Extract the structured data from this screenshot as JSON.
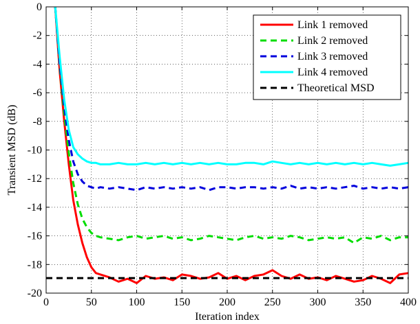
{
  "chart_data": {
    "type": "line",
    "title": "",
    "xlabel": "Iteration index",
    "ylabel": "Transient MSD  (dB)",
    "xlim": [
      0,
      400
    ],
    "ylim": [
      -20,
      0
    ],
    "xticks": [
      0,
      50,
      100,
      150,
      200,
      250,
      300,
      350,
      400
    ],
    "yticks": [
      0,
      -2,
      -4,
      -6,
      -8,
      -10,
      -12,
      -14,
      -16,
      -18,
      -20
    ],
    "grid": true,
    "legend_position": "top-right",
    "series": [
      {
        "name": "Link 1 removed",
        "color": "#ff0000",
        "style": "solid",
        "x": [
          10,
          15,
          20,
          25,
          30,
          35,
          40,
          45,
          50,
          55,
          60,
          70,
          80,
          90,
          100,
          110,
          120,
          130,
          140,
          150,
          160,
          170,
          180,
          190,
          200,
          210,
          220,
          230,
          240,
          250,
          260,
          270,
          280,
          290,
          300,
          310,
          320,
          330,
          340,
          350,
          360,
          370,
          380,
          390,
          400
        ],
        "y": [
          0,
          -4.5,
          -8,
          -11,
          -13.5,
          -15.2,
          -16.5,
          -17.5,
          -18.2,
          -18.6,
          -18.7,
          -18.9,
          -19.2,
          -19.0,
          -19.3,
          -18.8,
          -19.0,
          -18.9,
          -19.1,
          -18.7,
          -18.8,
          -19.0,
          -18.9,
          -18.6,
          -19.0,
          -18.8,
          -19.1,
          -18.8,
          -18.7,
          -18.4,
          -18.8,
          -19.0,
          -18.7,
          -19.0,
          -18.9,
          -19.1,
          -18.8,
          -19.0,
          -19.2,
          -19.1,
          -18.8,
          -19.0,
          -19.3,
          -18.7,
          -18.6
        ]
      },
      {
        "name": "Link 2 removed",
        "color": "#00dd00",
        "style": "dashed",
        "x": [
          10,
          15,
          20,
          25,
          30,
          35,
          40,
          45,
          50,
          55,
          60,
          70,
          80,
          90,
          100,
          110,
          120,
          130,
          140,
          150,
          160,
          170,
          180,
          190,
          200,
          210,
          220,
          230,
          240,
          250,
          260,
          270,
          280,
          290,
          300,
          310,
          320,
          330,
          340,
          350,
          360,
          370,
          380,
          390,
          400
        ],
        "y": [
          0,
          -4.2,
          -7.5,
          -10.2,
          -12.3,
          -13.8,
          -14.8,
          -15.4,
          -15.8,
          -16.0,
          -16.1,
          -16.2,
          -16.3,
          -16.1,
          -16.0,
          -16.2,
          -16.1,
          -16.0,
          -16.2,
          -16.1,
          -16.3,
          -16.2,
          -16.0,
          -16.1,
          -16.2,
          -16.3,
          -16.1,
          -16.0,
          -16.2,
          -16.1,
          -16.2,
          -16.0,
          -16.1,
          -16.3,
          -16.2,
          -16.1,
          -16.2,
          -16.1,
          -16.5,
          -16.1,
          -16.2,
          -16.0,
          -16.3,
          -16.1,
          -16.1
        ]
      },
      {
        "name": "Link 3 removed",
        "color": "#0000dd",
        "style": "dashed",
        "x": [
          10,
          15,
          20,
          25,
          30,
          35,
          40,
          45,
          50,
          55,
          60,
          70,
          80,
          90,
          100,
          110,
          120,
          130,
          140,
          150,
          160,
          170,
          180,
          190,
          200,
          210,
          220,
          230,
          240,
          250,
          260,
          270,
          280,
          290,
          300,
          310,
          320,
          330,
          340,
          350,
          360,
          370,
          380,
          390,
          400
        ],
        "y": [
          0,
          -4.0,
          -7.0,
          -9.3,
          -10.8,
          -11.7,
          -12.2,
          -12.5,
          -12.6,
          -12.7,
          -12.6,
          -12.7,
          -12.6,
          -12.7,
          -12.8,
          -12.6,
          -12.7,
          -12.6,
          -12.7,
          -12.6,
          -12.7,
          -12.6,
          -12.8,
          -12.6,
          -12.6,
          -12.7,
          -12.6,
          -12.6,
          -12.7,
          -12.6,
          -12.7,
          -12.5,
          -12.7,
          -12.6,
          -12.7,
          -12.6,
          -12.7,
          -12.6,
          -12.5,
          -12.7,
          -12.6,
          -12.7,
          -12.6,
          -12.7,
          -12.6
        ]
      },
      {
        "name": "Link 4 removed",
        "color": "#00ffff",
        "style": "solid",
        "x": [
          10,
          15,
          20,
          25,
          30,
          35,
          40,
          45,
          50,
          55,
          60,
          70,
          80,
          90,
          100,
          110,
          120,
          130,
          140,
          150,
          160,
          170,
          180,
          190,
          200,
          210,
          220,
          230,
          240,
          250,
          260,
          270,
          280,
          290,
          300,
          310,
          320,
          330,
          340,
          350,
          360,
          370,
          380,
          390,
          400
        ],
        "y": [
          0,
          -3.5,
          -6.5,
          -8.6,
          -9.8,
          -10.3,
          -10.6,
          -10.8,
          -10.9,
          -10.9,
          -11.0,
          -11.0,
          -10.9,
          -11.0,
          -11.0,
          -10.9,
          -11.0,
          -10.9,
          -11.0,
          -10.9,
          -11.0,
          -10.9,
          -11.0,
          -10.9,
          -11.0,
          -11.0,
          -10.9,
          -10.9,
          -11.0,
          -10.8,
          -10.9,
          -11.0,
          -10.9,
          -11.0,
          -10.9,
          -11.0,
          -10.9,
          -11.0,
          -10.9,
          -11.0,
          -10.9,
          -11.0,
          -11.1,
          -11.0,
          -10.9
        ]
      },
      {
        "name": "Theoretical MSD",
        "color": "#000000",
        "style": "dashed",
        "x": [
          0,
          400
        ],
        "y": [
          -18.95,
          -18.95
        ]
      }
    ]
  }
}
